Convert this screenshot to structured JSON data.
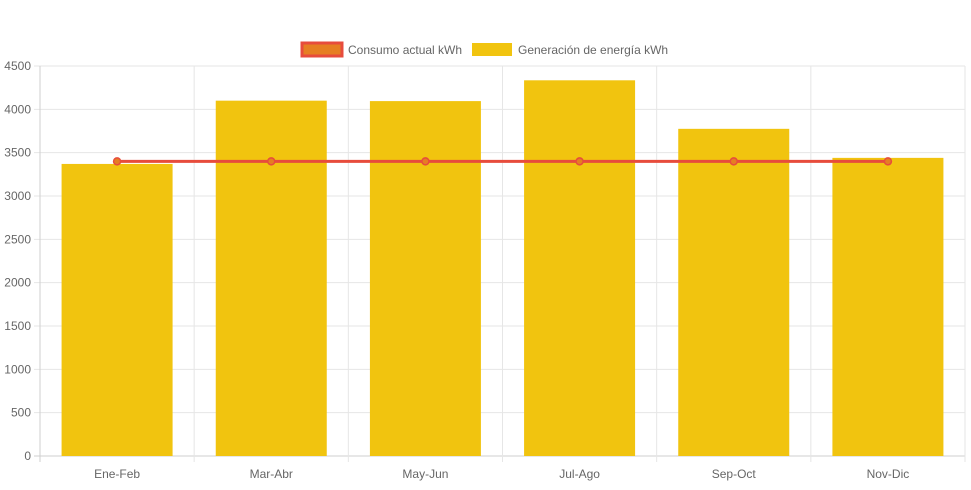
{
  "chart_data": {
    "type": "bar",
    "categories": [
      "Ene-Feb",
      "Mar-Abr",
      "May-Jun",
      "Jul-Ago",
      "Sep-Oct",
      "Nov-Dic"
    ],
    "series": [
      {
        "name": "Consumo actual kWh",
        "type": "line",
        "values": [
          3400,
          3400,
          3400,
          3400,
          3400,
          3400
        ],
        "color": "#e74c3c",
        "fill": "#e67e22"
      },
      {
        "name": "Generación de energía kWh",
        "type": "bar",
        "values": [
          3370,
          4100,
          4095,
          4335,
          3775,
          3440
        ],
        "color": "#f1c40f"
      }
    ],
    "ylim": [
      0,
      4500
    ],
    "yticks": [
      0,
      500,
      1000,
      1500,
      2000,
      2500,
      3000,
      3500,
      4000,
      4500
    ],
    "grid": true,
    "legend": "top-center"
  }
}
